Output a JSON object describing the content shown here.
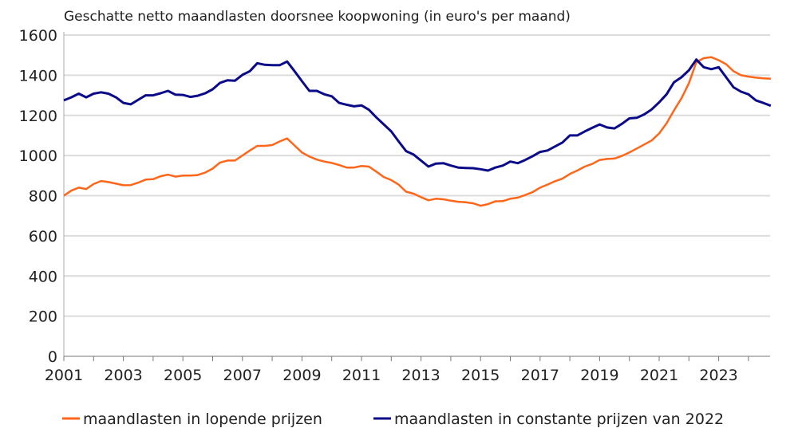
{
  "chart_data": {
    "type": "line",
    "title": "Geschatte netto maandlasten doorsnee koopwoning (in euro's per maand)",
    "xlabel": "",
    "ylabel": "",
    "ylim": [
      0,
      1600
    ],
    "yticks": [
      0,
      200,
      400,
      600,
      800,
      1000,
      1200,
      1400,
      1600
    ],
    "xlim": [
      2001,
      2025
    ],
    "xticks": [
      "2001",
      "2003",
      "2005",
      "2007",
      "2009",
      "2011",
      "2013",
      "2015",
      "2017",
      "2019",
      "2021",
      "2023"
    ],
    "frequency": "quarterly",
    "start": "2001Q1",
    "grid": "horizontal",
    "legend_position": "bottom",
    "series": [
      {
        "name": "maandlasten in lopende prijzen",
        "color": "#ff6619",
        "values": [
          800,
          825,
          840,
          833,
          858,
          873,
          868,
          860,
          852,
          853,
          865,
          880,
          882,
          897,
          905,
          895,
          900,
          900,
          903,
          915,
          935,
          965,
          975,
          975,
          1000,
          1025,
          1048,
          1048,
          1052,
          1070,
          1085,
          1050,
          1015,
          995,
          980,
          970,
          963,
          953,
          940,
          940,
          948,
          945,
          920,
          893,
          878,
          855,
          820,
          810,
          793,
          777,
          785,
          782,
          775,
          770,
          767,
          762,
          750,
          758,
          772,
          773,
          785,
          790,
          803,
          818,
          840,
          855,
          872,
          885,
          908,
          925,
          945,
          958,
          978,
          983,
          985,
          998,
          1015,
          1035,
          1055,
          1075,
          1110,
          1160,
          1225,
          1285,
          1360,
          1465,
          1485,
          1490,
          1475,
          1455,
          1420,
          1400,
          1393,
          1388,
          1385,
          1383
        ]
      },
      {
        "name": "maandlasten in constante prijzen van 2022",
        "color": "#0b0b8a",
        "values": [
          1275,
          1290,
          1308,
          1290,
          1308,
          1315,
          1308,
          1290,
          1262,
          1255,
          1278,
          1300,
          1300,
          1310,
          1322,
          1303,
          1302,
          1292,
          1298,
          1310,
          1330,
          1362,
          1375,
          1373,
          1402,
          1420,
          1460,
          1452,
          1450,
          1450,
          1468,
          1420,
          1370,
          1322,
          1322,
          1305,
          1295,
          1262,
          1253,
          1245,
          1250,
          1228,
          1190,
          1155,
          1120,
          1070,
          1022,
          1005,
          975,
          945,
          960,
          962,
          950,
          940,
          938,
          937,
          932,
          925,
          940,
          950,
          970,
          962,
          978,
          997,
          1018,
          1025,
          1045,
          1065,
          1100,
          1100,
          1120,
          1138,
          1155,
          1140,
          1135,
          1158,
          1185,
          1188,
          1205,
          1230,
          1265,
          1305,
          1365,
          1390,
          1425,
          1478,
          1440,
          1430,
          1440,
          1390,
          1340,
          1318,
          1305,
          1275,
          1262,
          1248
        ]
      }
    ]
  }
}
